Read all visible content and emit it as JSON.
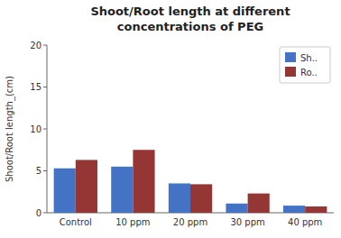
{
  "chart_data": {
    "type": "bar",
    "title": "Shoot/Root length at different",
    "subtitle": "concentrations of PEG",
    "ylabel": "Shoot/Root length_(cm)",
    "categories": [
      "Control",
      "10 ppm",
      "20 ppm",
      "30 ppm",
      "40 ppm"
    ],
    "series": [
      {
        "name": "Sh..",
        "color": "#4472C4",
        "values": [
          5.3,
          5.5,
          3.5,
          1.1,
          0.85
        ]
      },
      {
        "name": "Ro..",
        "color": "#943634",
        "values": [
          6.3,
          7.5,
          3.4,
          2.3,
          0.75
        ]
      }
    ],
    "ylim": [
      0,
      20
    ],
    "yticks": [
      0,
      5,
      10,
      15,
      20
    ],
    "legend": "upper right"
  }
}
